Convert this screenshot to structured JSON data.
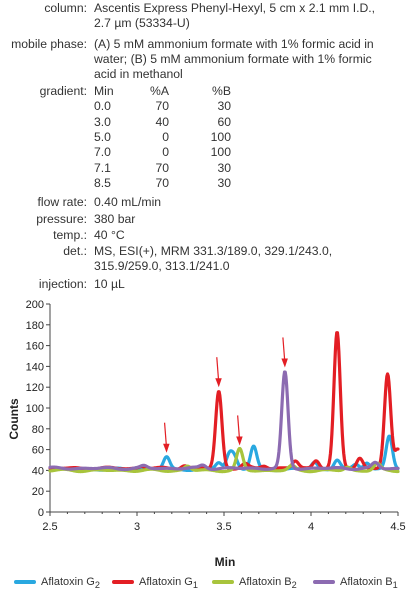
{
  "conditions": {
    "column": {
      "label": "column:",
      "lines": [
        "Ascentis Express Phenyl-Hexyl, 5 cm x 2.1 mm I.D.,",
        "2.7 µm (53334-U)"
      ]
    },
    "mobile_phase": {
      "label": "mobile phase:",
      "lines": [
        "(A) 5 mM ammonium formate with 1% formic acid in",
        "water; (B) 5 mM ammonium formate with 1% formic",
        "acid in methanol"
      ]
    },
    "gradient": {
      "label": "gradient:",
      "headers": [
        "Min",
        "%A",
        "%B"
      ],
      "rows": [
        [
          "0.0",
          "70",
          "30"
        ],
        [
          "3.0",
          "40",
          "60"
        ],
        [
          "5.0",
          "0",
          "100"
        ],
        [
          "7.0",
          "0",
          "100"
        ],
        [
          "7.1",
          "70",
          "30"
        ],
        [
          "8.5",
          "70",
          "30"
        ]
      ]
    },
    "flow_rate": {
      "label": "flow rate:",
      "value": "0.40 mL/min"
    },
    "pressure": {
      "label": "pressure:",
      "value": "380 bar"
    },
    "temp": {
      "label": "temp.:",
      "value": "40 °C"
    },
    "det": {
      "label": "det.:",
      "lines": [
        "MS, ESI(+), MRM 331.3/189.0, 329.1/243.0,",
        "315.9/259.0, 313.1/241.0"
      ]
    },
    "injection": {
      "label": "injection:",
      "value": "10 µL"
    }
  },
  "chart_data": {
    "type": "line",
    "xlabel": "Min",
    "ylabel": "Counts",
    "xlim": [
      2.5,
      4.5
    ],
    "ylim": [
      0,
      200
    ],
    "xticks": [
      "2.5",
      "3",
      "3.5",
      "4",
      "4.5"
    ],
    "yticks": [
      "0",
      "20",
      "40",
      "60",
      "80",
      "100",
      "120",
      "140",
      "160",
      "180",
      "200"
    ],
    "grid": false,
    "legend": "bottom",
    "series": [
      {
        "name": "Aflatoxin G2",
        "name_base": "Aflatoxin G",
        "name_sub": "2",
        "color": "#29a8e0",
        "baseline": 41,
        "peaks": [
          [
            3.17,
            53
          ],
          [
            3.47,
            48
          ],
          [
            3.53,
            55
          ],
          [
            3.56,
            52
          ],
          [
            3.67,
            63
          ],
          [
            4.02,
            48
          ],
          [
            4.15,
            50
          ],
          [
            4.26,
            46
          ],
          [
            4.32,
            48
          ],
          [
            4.45,
            73
          ]
        ]
      },
      {
        "name": "Aflatoxin G1",
        "name_base": "Aflatoxin G",
        "name_sub": "1",
        "color": "#e31e24",
        "baseline": 42,
        "peaks": [
          [
            3.03,
            44
          ],
          [
            3.27,
            45
          ],
          [
            3.47,
            116
          ],
          [
            3.62,
            46
          ],
          [
            3.73,
            45
          ],
          [
            3.91,
            49
          ],
          [
            4.03,
            50
          ],
          [
            4.15,
            172
          ],
          [
            4.28,
            52
          ],
          [
            4.44,
            132
          ],
          [
            4.5,
            60
          ]
        ]
      },
      {
        "name": "Aflatoxin B2",
        "name_base": "Aflatoxin B",
        "name_sub": "2",
        "color": "#a8c43c",
        "baseline": 40,
        "peaks": [
          [
            3.29,
            44
          ],
          [
            3.59,
            60
          ],
          [
            3.89,
            44
          ],
          [
            4.21,
            43
          ],
          [
            4.38,
            46
          ]
        ]
      },
      {
        "name": "Aflatoxin B1",
        "name_base": "Aflatoxin B",
        "name_sub": "1",
        "color": "#8c6bb1",
        "baseline": 42,
        "peaks": [
          [
            3.04,
            44
          ],
          [
            3.38,
            45
          ],
          [
            3.85,
            134
          ],
          [
            4.37,
            47
          ]
        ]
      }
    ],
    "annotations": [
      {
        "type": "arrow",
        "x": 3.17,
        "y": 57,
        "color": "#e31e24"
      },
      {
        "type": "arrow",
        "x": 3.47,
        "y": 120,
        "color": "#e31e24"
      },
      {
        "type": "arrow",
        "x": 3.59,
        "y": 64,
        "color": "#e31e24"
      },
      {
        "type": "arrow",
        "x": 3.85,
        "y": 139,
        "color": "#e31e24"
      }
    ]
  }
}
